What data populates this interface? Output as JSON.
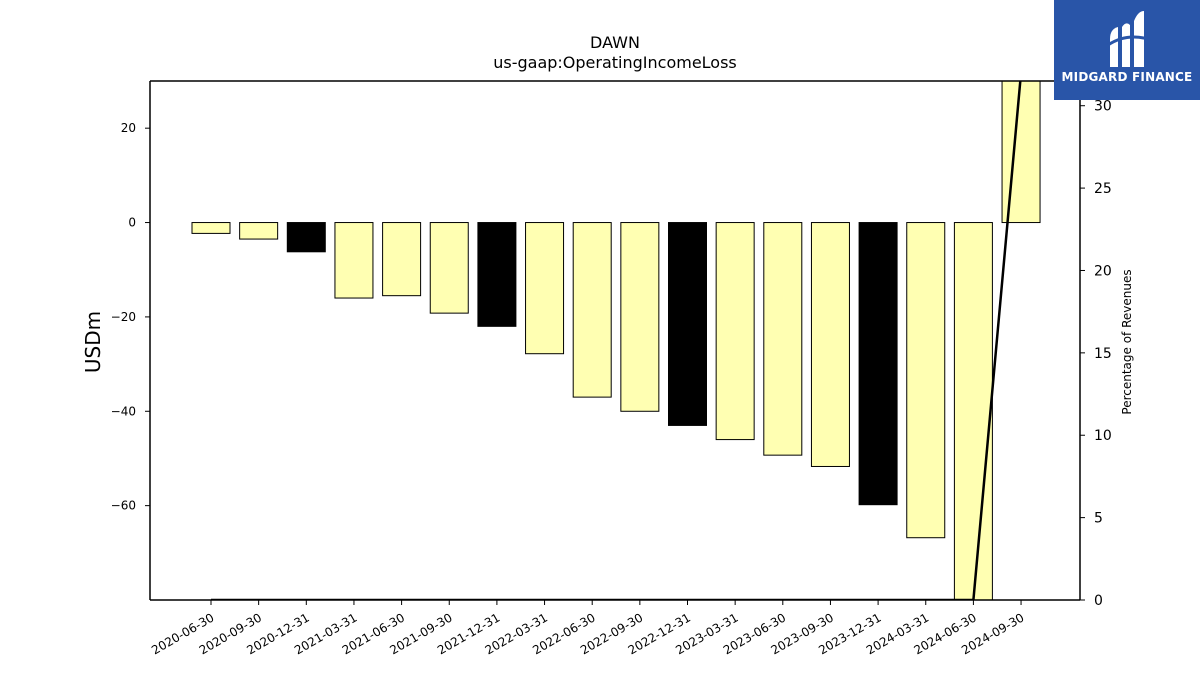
{
  "chart_data": {
    "type": "bar",
    "title": "DAWN",
    "subtitle": "us-gaap:OperatingIncomeLoss",
    "ylabel": "USDm",
    "y2label": "Percentage of Revenues",
    "categories": [
      "2020-06-30",
      "2020-09-30",
      "2020-12-31",
      "2021-03-31",
      "2021-06-30",
      "2021-09-30",
      "2021-12-31",
      "2022-03-31",
      "2022-06-30",
      "2022-09-30",
      "2022-12-31",
      "2023-03-31",
      "2023-06-30",
      "2023-09-30",
      "2023-12-31",
      "2024-03-31",
      "2024-06-30",
      "2024-09-30"
    ],
    "values": [
      -2.3,
      -3.5,
      -6.2,
      -16.0,
      -15.5,
      -19.2,
      -22.0,
      -27.8,
      -37.0,
      -40.0,
      -43.0,
      -46.0,
      -49.3,
      -51.7,
      -59.8,
      -66.8,
      -80.0,
      30.0
    ],
    "bar_colors": [
      "#ffffb2",
      "#ffffb2",
      "#000000",
      "#ffffb2",
      "#ffffb2",
      "#ffffb2",
      "#000000",
      "#ffffb2",
      "#ffffb2",
      "#ffffb2",
      "#000000",
      "#ffffb2",
      "#ffffb2",
      "#ffffb2",
      "#000000",
      "#ffffb2",
      "#ffffb2",
      "#ffffb2"
    ],
    "ylim": [
      -80,
      30
    ],
    "yticks": [
      20,
      0,
      -20,
      -40,
      -60
    ],
    "ytick_labels": [
      "20",
      "0",
      "−20",
      "−40",
      "−60"
    ],
    "y2lim": [
      0,
      31.5
    ],
    "y2ticks": [
      0,
      5,
      10,
      15,
      20,
      25,
      30
    ],
    "line_series": {
      "x_index": [
        0,
        1,
        2,
        3,
        4,
        5,
        6,
        7,
        8,
        9,
        10,
        11,
        12,
        13,
        14,
        15,
        16,
        17
      ],
      "values": [
        0,
        0,
        0,
        0,
        0,
        0,
        0,
        0,
        0,
        0,
        0,
        0,
        0,
        0,
        0,
        0,
        0,
        32
      ],
      "color": "#000000"
    },
    "grid": false
  },
  "logo": {
    "text": "MIDGARD FINANCE",
    "bg": "#2955a8"
  }
}
